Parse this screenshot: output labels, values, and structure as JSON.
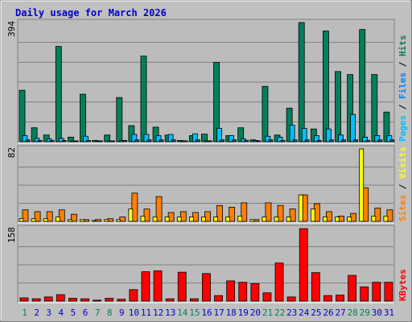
{
  "chart_data": {
    "type": "bar",
    "title": "Daily usage for March 2026",
    "colors": {
      "background": "#c0c0c0",
      "plot_bg": "#bcbcbc",
      "title": "#0000cc",
      "hits": "#00805c",
      "files": "#00c0ff",
      "pages": "#00c0ff",
      "visits": "#ff8000",
      "sites": "#ffff00",
      "kbytes": "#ff0000",
      "weekend_label": "#00805c",
      "weekday_label": "#0000cc"
    },
    "days": [
      "1",
      "2",
      "3",
      "4",
      "5",
      "6",
      "7",
      "8",
      "9",
      "10",
      "11",
      "12",
      "13",
      "14",
      "15",
      "16",
      "17",
      "18",
      "19",
      "20",
      "21",
      "22",
      "23",
      "24",
      "25",
      "26",
      "27",
      "28",
      "29",
      "30",
      "31"
    ],
    "weekend_days": [
      "1",
      "7",
      "8",
      "14",
      "15",
      "21",
      "22",
      "28",
      "29"
    ],
    "panels": [
      {
        "id": "hits-files-pages",
        "ymax_label": "394",
        "ymax": 394,
        "legend": [
          {
            "text": "Pages",
            "color": "#00c0ff"
          },
          {
            "text": " / ",
            "color": "#000000"
          },
          {
            "text": "Files",
            "color": "#0080ff"
          },
          {
            "text": " / ",
            "color": "#000000"
          },
          {
            "text": "Hits",
            "color": "#00805c"
          }
        ],
        "series": [
          {
            "name": "Hits",
            "color": "#00805c",
            "values": [
              170,
              46,
              22,
              315,
              15,
              157,
              4,
              22,
              146,
              53,
              283,
              48,
              22,
              4,
              20,
              25,
              262,
              20,
              46,
              6,
              183,
              22,
              111,
              394,
              42,
              366,
              232,
              222,
              371,
              222,
              98
            ]
          },
          {
            "name": "Files",
            "color": "#00c0ff",
            "values": [
              20,
              11,
              9,
              11,
              2,
              18,
              2,
              2,
              4,
              24,
              24,
              20,
              24,
              2,
              26,
              2,
              44,
              20,
              9,
              4,
              18,
              15,
              55,
              44,
              20,
              42,
              22,
              90,
              15,
              20,
              20
            ]
          },
          {
            "name": "Pages",
            "color": "#006090",
            "values": [
              6,
              4,
              4,
              4,
              2,
              4,
              2,
              2,
              4,
              6,
              6,
              6,
              6,
              2,
              6,
              2,
              6,
              6,
              4,
              2,
              6,
              4,
              6,
              6,
              4,
              6,
              6,
              6,
              4,
              6,
              6
            ]
          }
        ]
      },
      {
        "id": "visits-sites",
        "ymax_label": "82",
        "ymax": 82,
        "legend": [
          {
            "text": "Sites",
            "color": "#ff8000"
          },
          {
            "text": " / ",
            "color": "#000000"
          },
          {
            "text": "Visits",
            "color": "#ffff00"
          }
        ],
        "series": [
          {
            "name": "Visits",
            "color": "#ff8000",
            "values": [
              13,
              11,
              11,
              13,
              8,
              2,
              2,
              3,
              5,
              32,
              14,
              28,
              10,
              11,
              10,
              11,
              18,
              16,
              21,
              2,
              21,
              18,
              14,
              30,
              20,
              11,
              6,
              9,
              38,
              15,
              13
            ]
          },
          {
            "name": "Sites",
            "color": "#ffff00",
            "values": [
              3,
              3,
              3,
              5,
              2,
              2,
              1,
              2,
              2,
              14,
              6,
              5,
              5,
              5,
              5,
              5,
              5,
              5,
              6,
              2,
              5,
              5,
              5,
              30,
              14,
              5,
              5,
              5,
              82,
              6,
              6
            ]
          }
        ]
      },
      {
        "id": "kbytes",
        "ymax_label": "158",
        "ymax": 158,
        "legend": [
          {
            "text": "KBytes",
            "color": "#ff0000"
          }
        ],
        "series": [
          {
            "name": "KBytes",
            "color": "#ff0000",
            "values": [
              7,
              5,
              9,
              14,
              6,
              5,
              2,
              6,
              4,
              25,
              64,
              66,
              5,
              63,
              5,
              60,
              12,
              44,
              41,
              38,
              18,
              83,
              9,
              158,
              62,
              12,
              13,
              56,
              31,
              41,
              41
            ]
          }
        ]
      }
    ]
  }
}
